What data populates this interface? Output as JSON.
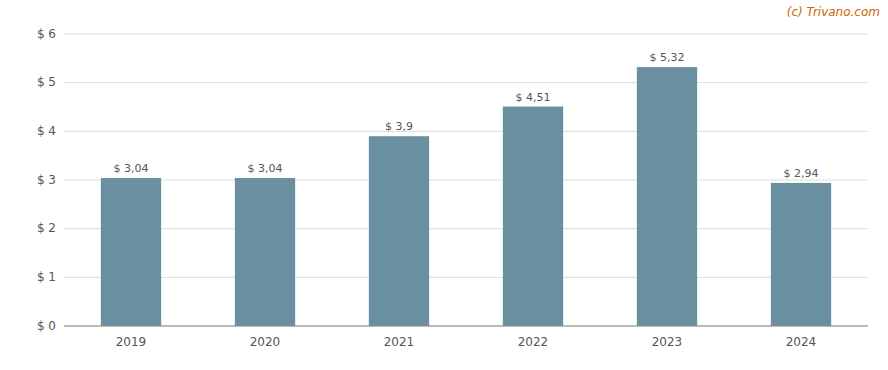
{
  "chart_data": {
    "type": "bar",
    "categories": [
      "2019",
      "2020",
      "2021",
      "2022",
      "2023",
      "2024"
    ],
    "values": [
      3.04,
      3.04,
      3.9,
      4.51,
      5.32,
      2.94
    ],
    "value_labels": [
      "$ 3,04",
      "$ 3,04",
      "$ 3,9",
      "$ 4,51",
      "$ 5,32",
      "$ 2,94"
    ],
    "data_labels": true,
    "color": "#6a8fa0",
    "ylim": [
      0,
      6
    ],
    "yticks": [
      {
        "value": 0,
        "label": "$ 0"
      },
      {
        "value": 1,
        "label": "$ 1"
      },
      {
        "value": 2,
        "label": "$ 2"
      },
      {
        "value": 3,
        "label": "$ 3"
      },
      {
        "value": 4,
        "label": "$ 4"
      },
      {
        "value": 5,
        "label": "$ 5"
      },
      {
        "value": 6,
        "label": "$ 6"
      }
    ],
    "grid": true,
    "annotations": [
      {
        "text": "(c) Trivano.com",
        "color": "#cc6600"
      }
    ]
  }
}
